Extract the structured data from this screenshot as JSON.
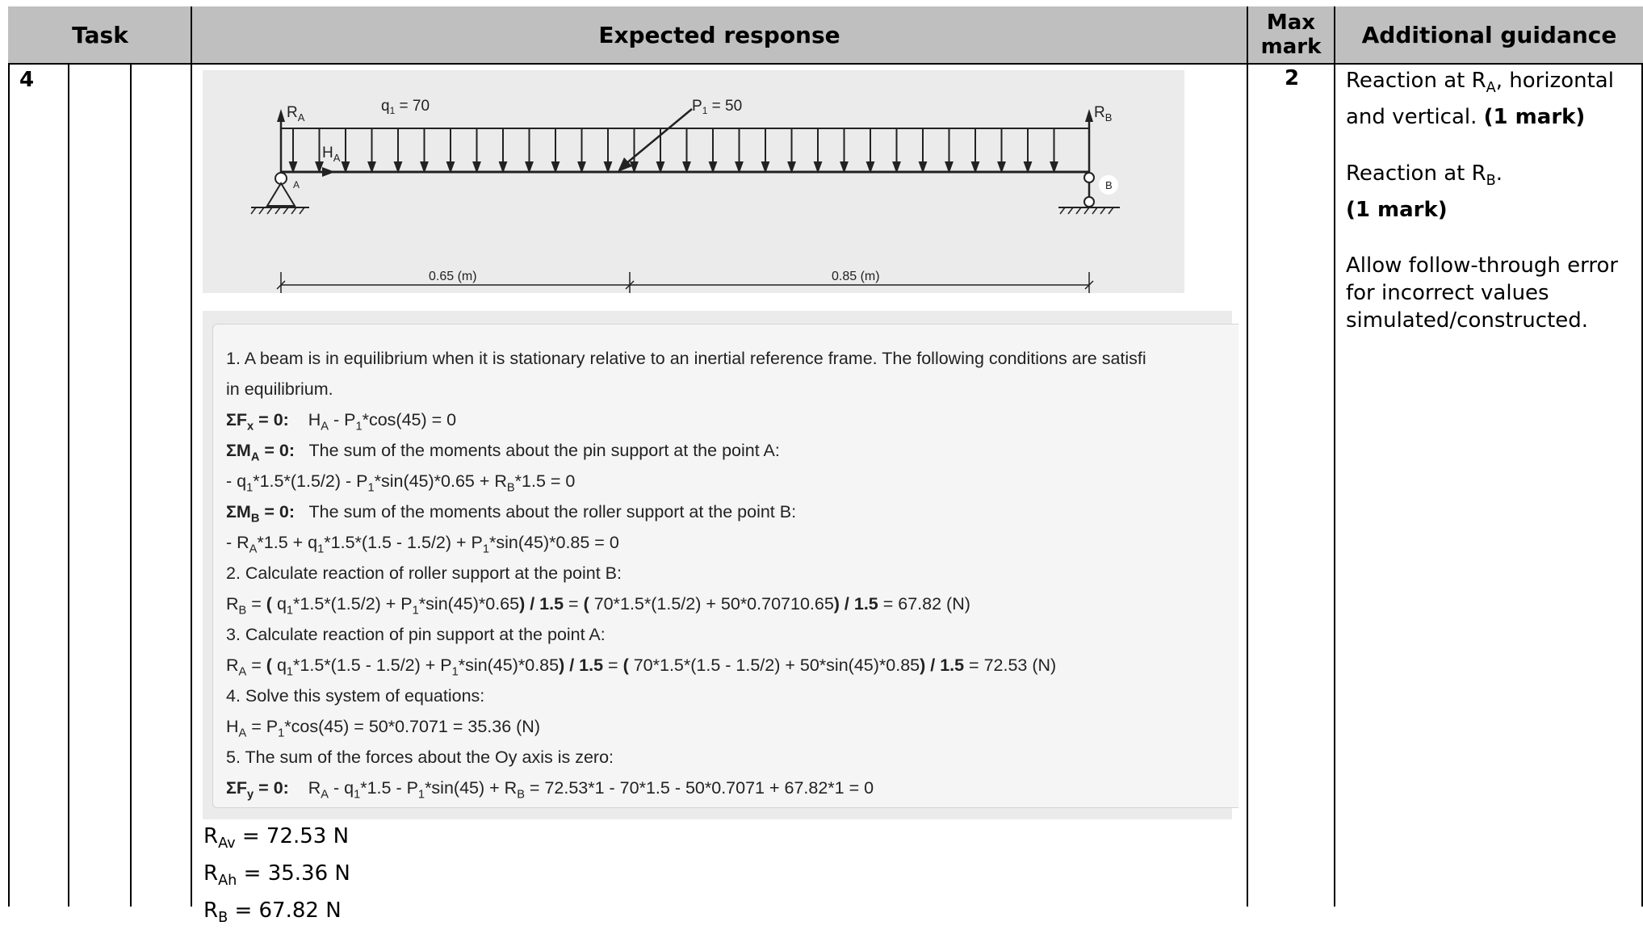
{
  "header": {
    "task": "Task",
    "expected_response": "Expected response",
    "max_mark_line1": "Max",
    "max_mark_line2": "mark",
    "additional_guidance": "Additional guidance"
  },
  "row": {
    "task_number": "4",
    "max_mark": "2"
  },
  "diagram": {
    "ra": "R",
    "ra_sub": "A",
    "ha": "H",
    "ha_sub": "A",
    "q1": "q",
    "q1_sub": "1",
    "q1_value": " = 70",
    "p1": "P",
    "p1_sub": "1",
    "p1_value": " = 50",
    "rb": "R",
    "rb_sub": "B",
    "point_a": "A",
    "point_b": "B",
    "dim1": "0.65 (m)",
    "dim2": "0.85 (m)"
  },
  "solution": {
    "l1": "1. A beam is in equilibrium when it is stationary relative to an inertial reference frame. The following conditions are satisfi",
    "l2": "in equilibrium.",
    "l3_label": "ΣF",
    "l3_label_sub": "x",
    "l3_label_end": " = 0:",
    "l3_text_a": "H",
    "l3_text_a_sub": "A",
    "l3_text_b": " - P",
    "l3_text_b_sub": "1",
    "l3_text_c": "*cos(45) = 0",
    "l4_label": "ΣM",
    "l4_label_sub": "A",
    "l4_label_end": " = 0:",
    "l4_text": "The sum of the moments about the pin support at the point A:",
    "l5_a": " - q",
    "l5_a_sub": "1",
    "l5_b": "*1.5*(1.5/2) - P",
    "l5_b_sub": "1",
    "l5_c": "*sin(45)*0.65 + R",
    "l5_c_sub": "B",
    "l5_d": "*1.5 = 0",
    "l6_label": "ΣM",
    "l6_label_sub": "B",
    "l6_label_end": " = 0:",
    "l6_text": "The sum of the moments about the roller support at the point B:",
    "l7_a": " - R",
    "l7_a_sub": "A",
    "l7_b": "*1.5 + q",
    "l7_b_sub": "1",
    "l7_c": "*1.5*(1.5 - 1.5/2) + P",
    "l7_c_sub": "1",
    "l7_d": "*sin(45)*0.85 = 0",
    "l8": "2. Calculate reaction of roller support at the point B:",
    "l9_a": "R",
    "l9_a_sub": "B",
    "l9_b": " = ",
    "l9_c": "(",
    "l9_d": " q",
    "l9_d_sub": "1",
    "l9_e": "*1.5*(1.5/2) + P",
    "l9_e_sub": "1",
    "l9_f": "*sin(45)*0.65",
    "l9_g": ") / 1.5",
    "l9_h": " = ",
    "l9_i": "(",
    "l9_j": " 70*1.5*(1.5/2) + 50*0.70710.65",
    "l9_k": ") / 1.5",
    "l9_l": " = 67.82 (N)",
    "l10": "3. Calculate reaction of pin support at the point A:",
    "l11_a": "R",
    "l11_a_sub": "A",
    "l11_b": " = ",
    "l11_c": "(",
    "l11_d": " q",
    "l11_d_sub": "1",
    "l11_e": "*1.5*(1.5 - 1.5/2) + P",
    "l11_e_sub": "1",
    "l11_f": "*sin(45)*0.85",
    "l11_g": ") / 1.5",
    "l11_h": " = ",
    "l11_i": "(",
    "l11_j": " 70*1.5*(1.5 - 1.5/2) + 50*sin(45)*0.85",
    "l11_k": ") / 1.5",
    "l11_l": " = 72.53 (N)",
    "l12": "4. Solve this system of equations:",
    "l13_a": "H",
    "l13_a_sub": "A",
    "l13_b": " =  P",
    "l13_b_sub": "1",
    "l13_c": "*cos(45) =  50*0.7071 = 35.36 (N)",
    "l14": "5. The sum of the forces about the Oy axis is zero:",
    "l15_label": "ΣF",
    "l15_label_sub": "y",
    "l15_label_end": " = 0:",
    "l15_a": "R",
    "l15_a_sub": "A",
    "l15_b": " - q",
    "l15_b_sub": "1",
    "l15_c": "*1.5 - P",
    "l15_c_sub": "1",
    "l15_d": "*sin(45) + R",
    "l15_d_sub": "B",
    "l15_e": " =  72.53*1 - 70*1.5 - 50*0.7071 + 67.82*1 = 0"
  },
  "results": {
    "r1": "R",
    "r1_sub": "Av",
    "r1_val": " = 72.53 N",
    "r2": "R",
    "r2_sub": "Ah",
    "r2_val": " = 35.36 N",
    "r3": "R",
    "r3_sub": "B",
    "r3_val": " = 67.82 N"
  },
  "guidance": {
    "g1_a": "Reaction at R",
    "g1_a_sub": "A",
    "g1_b": ", horizontal and vertical. ",
    "g1_mark": "(1 mark)",
    "g2_a": "Reaction at R",
    "g2_a_sub": "B",
    "g2_b": ".",
    "g2_mark": "(1 mark)",
    "g3": "Allow follow-through error for incorrect values simulated/constructed."
  }
}
